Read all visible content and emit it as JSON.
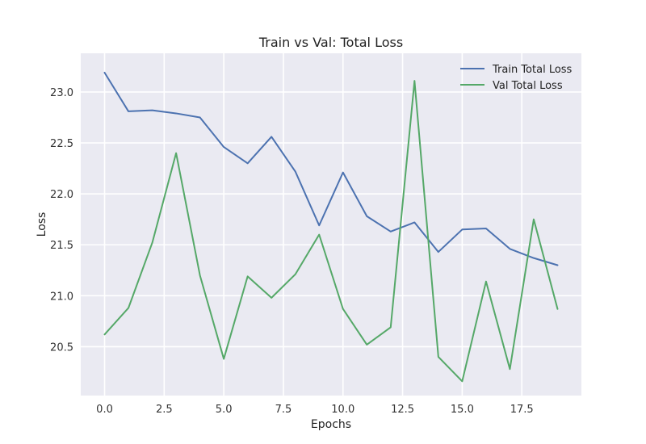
{
  "chart_data": {
    "type": "line",
    "title": "Train vs Val: Total Loss",
    "xlabel": "Epochs",
    "ylabel": "Loss",
    "xlim": [
      -1.0,
      20.0
    ],
    "ylim": [
      20.02,
      23.38
    ],
    "x": [
      0,
      1,
      2,
      3,
      4,
      5,
      6,
      7,
      8,
      9,
      10,
      11,
      12,
      13,
      14,
      15,
      16,
      17,
      18,
      19
    ],
    "xticks": [
      0.0,
      2.5,
      5.0,
      7.5,
      10.0,
      12.5,
      15.0,
      17.5
    ],
    "xtick_labels": [
      "0.0",
      "2.5",
      "5.0",
      "7.5",
      "10.0",
      "12.5",
      "15.0",
      "17.5"
    ],
    "yticks": [
      20.5,
      21.0,
      21.5,
      22.0,
      22.5,
      23.0
    ],
    "ytick_labels": [
      "20.5",
      "21.0",
      "21.5",
      "22.0",
      "22.5",
      "23.0"
    ],
    "grid": true,
    "legend_position": "top-right",
    "background_color": "#eaeaf2",
    "series": [
      {
        "name": "Train Total Loss",
        "color": "#4c72b0",
        "values": [
          23.19,
          22.81,
          22.82,
          22.79,
          22.75,
          22.46,
          22.3,
          22.56,
          22.22,
          21.69,
          22.21,
          21.78,
          21.63,
          21.72,
          21.43,
          21.65,
          21.66,
          21.46,
          21.37,
          21.3
        ]
      },
      {
        "name": "Val Total Loss",
        "color": "#55a868",
        "values": [
          20.62,
          20.88,
          21.52,
          22.4,
          21.2,
          20.38,
          21.19,
          20.98,
          21.21,
          21.6,
          20.87,
          20.52,
          20.69,
          23.11,
          20.4,
          20.16,
          21.14,
          20.28,
          21.75,
          20.87
        ]
      }
    ]
  }
}
